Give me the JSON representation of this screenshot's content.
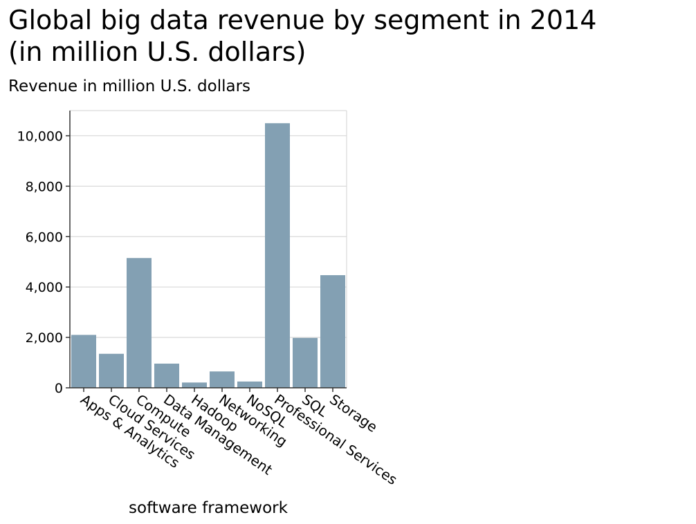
{
  "chart_data": {
    "type": "bar",
    "title": "Global big data revenue by segment in 2014\n(in million U.S. dollars)",
    "ylabel": "Revenue in million U.S. dollars",
    "xlabel": "software framework",
    "categories": [
      "Apps & Analytics",
      "Cloud Services",
      "Compute",
      "Data Management",
      "Hadoop",
      "Networking",
      "NoSQL",
      "Professional Services",
      "SQL",
      "Storage"
    ],
    "values": [
      2100,
      1350,
      5150,
      960,
      210,
      650,
      250,
      10500,
      1980,
      4470
    ],
    "ylim": [
      0,
      11000
    ],
    "yticks": [
      0,
      2000,
      4000,
      6000,
      8000,
      10000
    ],
    "ytick_labels": [
      "0",
      "2,000",
      "4,000",
      "6,000",
      "8,000",
      "10,000"
    ],
    "grid": true,
    "bar_color": "#83a0b3"
  }
}
